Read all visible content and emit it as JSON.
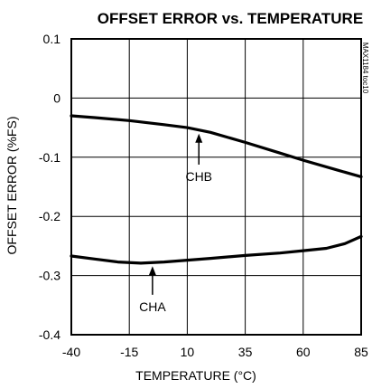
{
  "chart_data": {
    "type": "line",
    "title": "OFFSET ERROR vs. TEMPERATURE",
    "xlabel": "TEMPERATURE (°C)",
    "ylabel": "OFFSET ERROR (%FS)",
    "side_label": "MAX1184 toc10",
    "xlim": [
      -40,
      85
    ],
    "ylim": [
      -0.4,
      0.1
    ],
    "x_ticks": [
      -40,
      -15,
      10,
      35,
      60,
      85
    ],
    "x_tick_labels": [
      "-40",
      "-15",
      "10",
      "35",
      "60",
      "85"
    ],
    "y_ticks": [
      0.1,
      0,
      -0.1,
      -0.2,
      -0.3,
      -0.4
    ],
    "y_tick_labels": [
      "0.1",
      "0",
      "-0.1",
      "-0.2",
      "-0.3",
      "-0.4"
    ],
    "grid": true,
    "series": [
      {
        "name": "CHB",
        "x": [
          -40,
          -30,
          -15,
          0,
          10,
          20,
          35,
          50,
          60,
          75,
          85
        ],
        "y": [
          -0.03,
          -0.033,
          -0.038,
          -0.045,
          -0.05,
          -0.058,
          -0.075,
          -0.093,
          -0.105,
          -0.122,
          -0.133
        ]
      },
      {
        "name": "CHA",
        "x": [
          -40,
          -30,
          -20,
          -10,
          0,
          10,
          20,
          35,
          50,
          60,
          70,
          78,
          85
        ],
        "y": [
          -0.267,
          -0.272,
          -0.277,
          -0.279,
          -0.277,
          -0.274,
          -0.271,
          -0.266,
          -0.262,
          -0.258,
          -0.254,
          -0.246,
          -0.234
        ]
      }
    ],
    "annotations": [
      {
        "text": "CHB",
        "series": "CHB",
        "point_x": 15,
        "point_y": -0.054,
        "label_x": 15,
        "label_y": -0.14
      },
      {
        "text": "CHA",
        "series": "CHA",
        "point_x": -5,
        "point_y": -0.278,
        "label_x": -5,
        "label_y": -0.36
      }
    ]
  }
}
